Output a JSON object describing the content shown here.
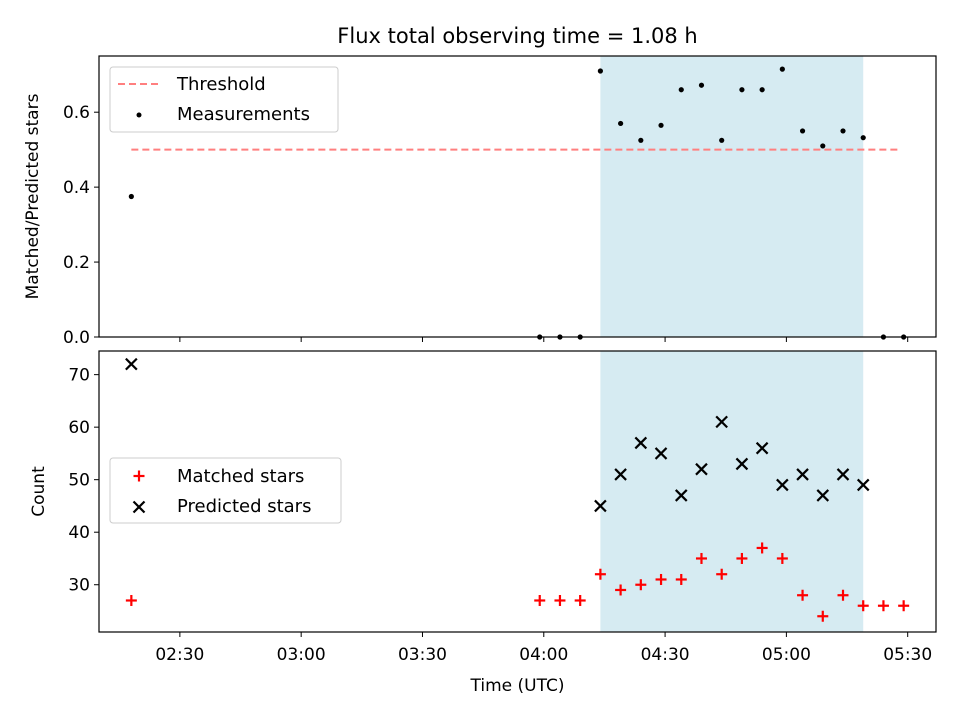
{
  "chart_data": [
    {
      "type": "scatter",
      "title": "Flux total observing time = 1.08 h",
      "ylabel": "Matched/Predicted stars",
      "ylim": [
        0,
        0.75
      ],
      "yticks": [
        0.0,
        0.2,
        0.4,
        0.6
      ],
      "ytick_labels": [
        "0.0",
        "0.2",
        "0.4",
        "0.6"
      ],
      "highlight_span": {
        "start": "04:14",
        "end": "05:19",
        "color": "#add8e6"
      },
      "threshold": {
        "name": "Threshold",
        "value": 0.5,
        "x_start": "02:18",
        "x_end": "05:28",
        "color": "#ff7f7f"
      },
      "series": [
        {
          "name": "Measurements",
          "color": "#000000",
          "x": [
            "02:18",
            "03:59",
            "04:04",
            "04:09",
            "04:14",
            "04:19",
            "04:24",
            "04:29",
            "04:34",
            "04:39",
            "04:44",
            "04:49",
            "04:54",
            "04:59",
            "05:04",
            "05:09",
            "05:14",
            "05:19",
            "05:24",
            "05:29"
          ],
          "y": [
            0.375,
            0.0,
            0.0,
            0.0,
            0.71,
            0.57,
            0.525,
            0.565,
            0.66,
            0.672,
            0.525,
            0.66,
            0.66,
            0.715,
            0.55,
            0.51,
            0.55,
            0.532,
            0.0,
            0.0
          ]
        }
      ],
      "legend_position": "upper-left"
    },
    {
      "type": "scatter",
      "xlabel": "Time (UTC)",
      "ylabel": "Count",
      "xlim": [
        "02:10",
        "05:37"
      ],
      "ylim": [
        21,
        74.5
      ],
      "yticks": [
        30,
        40,
        50,
        60,
        70
      ],
      "ytick_labels": [
        "30",
        "40",
        "50",
        "60",
        "70"
      ],
      "xticks": [
        "02:30",
        "03:00",
        "03:30",
        "04:00",
        "04:30",
        "05:00",
        "05:30"
      ],
      "highlight_span": {
        "start": "04:14",
        "end": "05:19",
        "color": "#add8e6"
      },
      "series": [
        {
          "name": "Matched stars",
          "marker": "plus",
          "color": "#ff0000",
          "x": [
            "02:18",
            "03:59",
            "04:04",
            "04:09",
            "04:14",
            "04:19",
            "04:24",
            "04:29",
            "04:34",
            "04:39",
            "04:44",
            "04:49",
            "04:54",
            "04:59",
            "05:04",
            "05:09",
            "05:14",
            "05:19",
            "05:24",
            "05:29"
          ],
          "y": [
            27,
            27,
            27,
            27,
            32,
            29,
            30,
            31,
            31,
            35,
            32,
            35,
            37,
            35,
            28,
            24,
            28,
            26,
            26,
            26
          ]
        },
        {
          "name": "Predicted stars",
          "marker": "x",
          "color": "#000000",
          "x": [
            "02:18",
            "04:14",
            "04:19",
            "04:24",
            "04:29",
            "04:34",
            "04:39",
            "04:44",
            "04:49",
            "04:54",
            "04:59",
            "05:04",
            "05:09",
            "05:14",
            "05:19"
          ],
          "y": [
            72,
            45,
            51,
            57,
            55,
            47,
            52,
            61,
            53,
            56,
            49,
            51,
            47,
            51,
            49
          ]
        }
      ],
      "legend_position": "center-left"
    }
  ]
}
